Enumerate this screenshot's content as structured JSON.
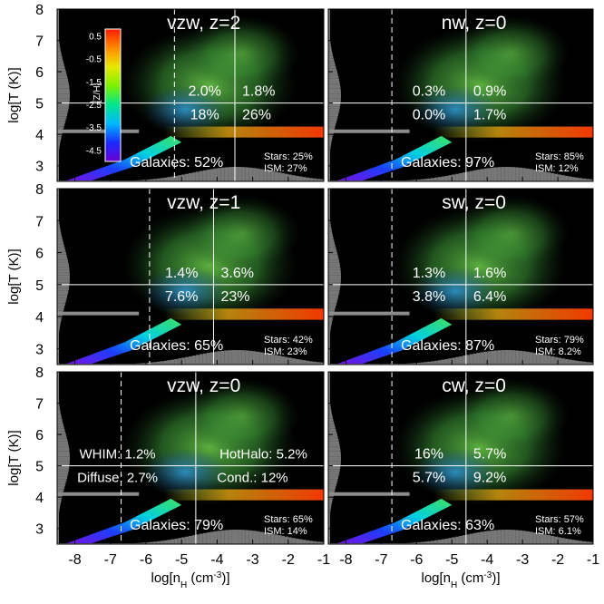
{
  "figure": {
    "xlabel_html": "log[n<tspan baseline-shift='sub' font-size='10'>H</tspan> (cm<tspan baseline-shift='super' font-size='10'>-3</tspan>)]",
    "xlabel": "log[nH (cm-3)]",
    "ylabel": "log[T (K)]",
    "colorbar": {
      "label": "[Z/H]",
      "ticks": [
        "0.5",
        "-0.5",
        "-1.5",
        "-2.5",
        "-3.5",
        "-4.5"
      ],
      "tick_values": [
        0.5,
        -0.5,
        -1.5,
        -2.5,
        -3.5,
        -4.5
      ],
      "range": [
        -5.0,
        0.8
      ],
      "colors": [
        "#6a00d0",
        "#1a2bff",
        "#00b8ff",
        "#00e68c",
        "#7cf000",
        "#e8e800",
        "#ff8a00",
        "#ff1a00"
      ]
    },
    "xticks": [
      "-8",
      "-7",
      "-6",
      "-5",
      "-4",
      "-3",
      "-2",
      "-1"
    ],
    "xtick_values": [
      -8,
      -7,
      -6,
      -5,
      -4,
      -3,
      -2,
      -1
    ],
    "yticks": [
      "8",
      "7",
      "6",
      "5",
      "4",
      "3"
    ],
    "ytick_values": [
      8,
      7,
      6,
      5,
      4,
      3
    ],
    "xlim": [
      -8.5,
      -1
    ],
    "ylim": [
      2.5,
      8
    ],
    "grey_color": "#8c8c8c",
    "line_color": "#ffffff"
  },
  "chart_data": [
    {
      "type": "heatmap",
      "title": "vzw, z=2",
      "delta_th": -5.2,
      "temp_th": 5.0,
      "vline2": -3.5,
      "upper_left": "2.0%",
      "upper_right": "1.8%",
      "lower_left": "18%",
      "lower_right": "26%",
      "galaxies": "Galaxies: 52%",
      "stars": "Stars: 25%",
      "ism": "ISM: 27%",
      "grey_line_y": 4.1
    },
    {
      "type": "heatmap",
      "title": "nw, z=0",
      "delta_th": -6.7,
      "temp_th": 5.0,
      "vline2": -4.6,
      "upper_left": "0.3%",
      "upper_right": "0.9%",
      "lower_left": "0.0%",
      "lower_right": "1.7%",
      "galaxies": "Galaxies: 97%",
      "stars": "Stars: 85%",
      "ism": "ISM: 12%",
      "grey_line_y": 4.1
    },
    {
      "type": "heatmap",
      "title": "vzw, z=1",
      "delta_th": -5.9,
      "temp_th": 5.0,
      "vline2": -4.1,
      "upper_left": "1.4%",
      "upper_right": "3.6%",
      "lower_left": "7.6%",
      "lower_right": "23%",
      "galaxies": "Galaxies: 65%",
      "stars": "Stars: 42%",
      "ism": "ISM: 23%",
      "grey_line_y": 4.1
    },
    {
      "type": "heatmap",
      "title": "sw, z=0",
      "delta_th": -6.7,
      "temp_th": 5.0,
      "vline2": -4.6,
      "upper_left": "1.3%",
      "upper_right": "1.6%",
      "lower_left": "3.8%",
      "lower_right": "6.4%",
      "galaxies": "Galaxies: 87%",
      "stars": "Stars: 79%",
      "ism": "ISM: 8.2%",
      "grey_line_y": 4.1
    },
    {
      "type": "heatmap",
      "title": "vzw, z=0",
      "delta_th": -6.7,
      "temp_th": 5.0,
      "vline2": -4.6,
      "upper_left": "WHIM: 1.2%",
      "upper_right": "HotHalo: 5.2%",
      "lower_left": "Diffuse: 2.7%",
      "lower_right": "Cond.: 12%",
      "galaxies": "Galaxies: 79%",
      "stars": "Stars: 65%",
      "ism": "ISM: 14%",
      "grey_line_y": 4.1
    },
    {
      "type": "heatmap",
      "title": "cw, z=0",
      "delta_th": -6.7,
      "temp_th": 5.0,
      "vline2": -4.6,
      "upper_left": "16%",
      "upper_right": "5.7%",
      "lower_left": "5.7%",
      "lower_right": "9.2%",
      "galaxies": "Galaxies: 63%",
      "stars": "Stars: 57%",
      "ism": "ISM: 6.1%",
      "grey_line_y": 4.1
    }
  ]
}
